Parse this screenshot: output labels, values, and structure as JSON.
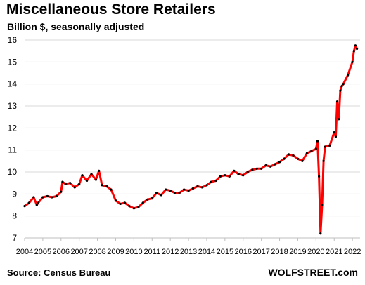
{
  "chart_data": {
    "type": "line",
    "title": "Miscellaneous Store Retailers",
    "subtitle": "Billion $, seasonally adjusted",
    "ylim": [
      7,
      16
    ],
    "y_ticks": [
      7,
      8,
      9,
      10,
      11,
      12,
      13,
      14,
      15,
      16
    ],
    "x_ticks": [
      "2004",
      "2005",
      "2006",
      "2007",
      "2008",
      "2009",
      "2010",
      "2011",
      "2012",
      "2013",
      "2014",
      "2015",
      "2016",
      "2017",
      "2018",
      "2019",
      "2020",
      "2021",
      "2022"
    ],
    "grid": true,
    "source": "Source: Census Bureau",
    "watermark": "WOLFSTREET.com",
    "line_color": "#ff0000",
    "marker_color": "#000000",
    "series": [
      {
        "x": [
          "2004-01",
          "2004-04",
          "2004-07",
          "2004-09",
          "2004-10",
          "2005-01",
          "2005-04",
          "2005-07",
          "2005-10",
          "2006-01",
          "2006-02",
          "2006-04",
          "2006-07",
          "2006-10",
          "2007-01",
          "2007-03",
          "2007-06",
          "2007-09",
          "2007-12",
          "2008-02",
          "2008-04",
          "2008-07",
          "2008-10",
          "2009-01",
          "2009-04",
          "2009-07",
          "2009-10",
          "2010-01",
          "2010-04",
          "2010-07",
          "2010-10",
          "2011-01",
          "2011-04",
          "2011-07",
          "2011-10",
          "2012-01",
          "2012-04",
          "2012-07",
          "2012-10",
          "2013-01",
          "2013-04",
          "2013-07",
          "2013-10",
          "2014-01",
          "2014-04",
          "2014-07",
          "2014-10",
          "2015-01",
          "2015-04",
          "2015-07",
          "2015-10",
          "2016-01",
          "2016-04",
          "2016-07",
          "2016-10",
          "2017-01",
          "2017-04",
          "2017-07",
          "2017-10",
          "2018-01",
          "2018-04",
          "2018-07",
          "2018-10",
          "2019-01",
          "2019-04",
          "2019-07",
          "2019-10",
          "2020-01",
          "2020-02",
          "2020-03",
          "2020-04",
          "2020-05",
          "2020-06",
          "2020-07",
          "2020-10",
          "2021-01",
          "2021-02",
          "2021-03",
          "2021-04",
          "2021-05",
          "2021-06",
          "2021-07",
          "2021-10",
          "2022-01",
          "2022-02",
          "2022-03",
          "2022-04"
        ],
        "values": [
          8.45,
          8.6,
          8.85,
          8.5,
          8.6,
          8.85,
          8.9,
          8.85,
          8.9,
          9.1,
          9.55,
          9.45,
          9.5,
          9.3,
          9.45,
          9.85,
          9.6,
          9.9,
          9.65,
          10.05,
          9.4,
          9.35,
          9.2,
          8.7,
          8.55,
          8.6,
          8.45,
          8.35,
          8.4,
          8.6,
          8.75,
          8.8,
          9.05,
          8.95,
          9.2,
          9.15,
          9.05,
          9.05,
          9.2,
          9.15,
          9.25,
          9.35,
          9.3,
          9.4,
          9.55,
          9.6,
          9.8,
          9.85,
          9.8,
          10.05,
          9.9,
          9.85,
          10.0,
          10.1,
          10.15,
          10.15,
          10.3,
          10.25,
          10.35,
          10.45,
          10.6,
          10.8,
          10.75,
          10.6,
          10.5,
          10.85,
          10.95,
          11.05,
          11.4,
          9.8,
          7.2,
          8.5,
          10.5,
          11.15,
          11.2,
          11.8,
          11.6,
          13.2,
          12.4,
          13.7,
          13.9,
          14.0,
          14.4,
          15.0,
          15.5,
          15.75,
          15.6
        ]
      }
    ]
  }
}
